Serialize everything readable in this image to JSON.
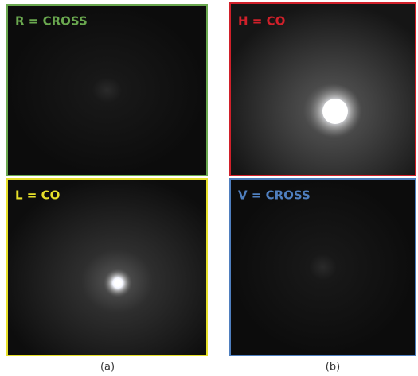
{
  "panels": [
    {
      "label": "R = CROSS"
    },
    {
      "label": "L = CO"
    },
    {
      "label": "H = CO"
    },
    {
      "label": "V = CROSS"
    }
  ],
  "captions": [
    "(a)",
    "(b)"
  ]
}
